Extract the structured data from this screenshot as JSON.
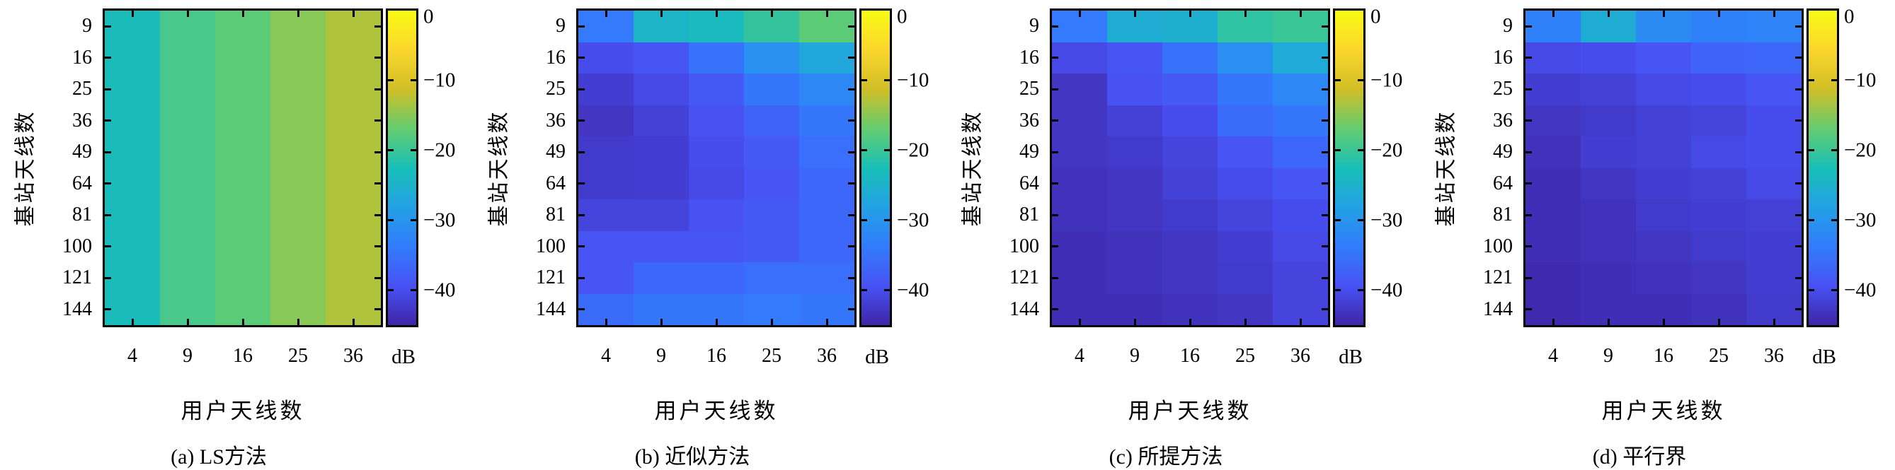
{
  "chart_data": {
    "type": "heatmap",
    "xlabel": "用户天线数",
    "ylabel": "基站天线数",
    "x_categories": [
      "4",
      "9",
      "16",
      "25",
      "36"
    ],
    "y_categories": [
      "9",
      "16",
      "25",
      "36",
      "49",
      "64",
      "81",
      "100",
      "121",
      "144"
    ],
    "unit": "dB",
    "value_range": [
      -45,
      0
    ],
    "grid": false,
    "colormap_name": "parula",
    "colormap": [
      "#3E26A8",
      "#4852F4",
      "#327CFC",
      "#23A1E5",
      "#19BFB6",
      "#64CD6F",
      "#D1BF27",
      "#FAD62D",
      "#F9FB15"
    ],
    "colorbar_ticks": [
      0,
      -10,
      -20,
      -30,
      -40
    ],
    "colorbar_tick_labels": [
      "0",
      "−10",
      "−20",
      "−30",
      "−40"
    ],
    "colorbar_position": "right",
    "panels": [
      {
        "caption": "(a) LS方法",
        "values": [
          [
            -23,
            -19,
            -17.5,
            -15,
            -13
          ],
          [
            -23,
            -19,
            -17.5,
            -15,
            -13
          ],
          [
            -23,
            -19,
            -17.5,
            -15,
            -13
          ],
          [
            -23,
            -19,
            -17.5,
            -15,
            -13
          ],
          [
            -23,
            -19,
            -17.5,
            -15,
            -13
          ],
          [
            -23,
            -19,
            -17.5,
            -15,
            -13
          ],
          [
            -23,
            -19,
            -17.5,
            -15,
            -13
          ],
          [
            -23,
            -19,
            -17.5,
            -15,
            -13
          ],
          [
            -23,
            -19,
            -17.5,
            -15,
            -13
          ],
          [
            -23,
            -19,
            -17.5,
            -15,
            -13
          ]
        ]
      },
      {
        "caption": "(b) 近似方法",
        "values": [
          [
            -34,
            -24.5,
            -23.5,
            -20.5,
            -17.5
          ],
          [
            -40,
            -39,
            -35,
            -30.5,
            -27
          ],
          [
            -42,
            -40.5,
            -38.5,
            -34.5,
            -32
          ],
          [
            -43,
            -41.5,
            -39.5,
            -37,
            -34.5
          ],
          [
            -42.5,
            -42,
            -40,
            -38.5,
            -35.5
          ],
          [
            -42.5,
            -42,
            -40.5,
            -39,
            -36.5
          ],
          [
            -41,
            -41,
            -39.5,
            -38.5,
            -36.5
          ],
          [
            -39,
            -39,
            -39,
            -38.5,
            -36.5
          ],
          [
            -39,
            -36.5,
            -36.5,
            -35.5,
            -35.5
          ],
          [
            -36,
            -34.5,
            -34.5,
            -34,
            -34.5
          ]
        ]
      },
      {
        "caption": "(c) 所提方法",
        "values": [
          [
            -34,
            -26,
            -25.5,
            -21,
            -20
          ],
          [
            -40.5,
            -39,
            -35,
            -31,
            -26.5
          ],
          [
            -43,
            -39.5,
            -38.5,
            -34.5,
            -32
          ],
          [
            -43,
            -41.5,
            -40,
            -36,
            -34.5
          ],
          [
            -43,
            -42.5,
            -41,
            -39,
            -36.5
          ],
          [
            -43.5,
            -43,
            -41.5,
            -40,
            -39
          ],
          [
            -43.5,
            -43,
            -42.5,
            -41,
            -40
          ],
          [
            -44,
            -43.5,
            -43,
            -42,
            -40.5
          ],
          [
            -44,
            -43.5,
            -43,
            -42.5,
            -41
          ],
          [
            -44,
            -44,
            -43.5,
            -43,
            -41
          ]
        ]
      },
      {
        "caption": "(d) 平行界",
        "values": [
          [
            -33,
            -26,
            -31.5,
            -33,
            -32.5
          ],
          [
            -40.5,
            -40,
            -39,
            -37,
            -36.5
          ],
          [
            -42,
            -41.5,
            -40.5,
            -40,
            -39
          ],
          [
            -43,
            -42.5,
            -41.5,
            -41,
            -40
          ],
          [
            -43.5,
            -42,
            -41.5,
            -40.5,
            -40
          ],
          [
            -44,
            -43,
            -42,
            -41.5,
            -40.5
          ],
          [
            -44,
            -43.5,
            -42.5,
            -42,
            -41.5
          ],
          [
            -44,
            -43.5,
            -43,
            -42.5,
            -42
          ],
          [
            -44.5,
            -44,
            -43.5,
            -43,
            -42
          ],
          [
            -44.5,
            -44,
            -44,
            -43.5,
            -42.5
          ]
        ]
      }
    ]
  }
}
